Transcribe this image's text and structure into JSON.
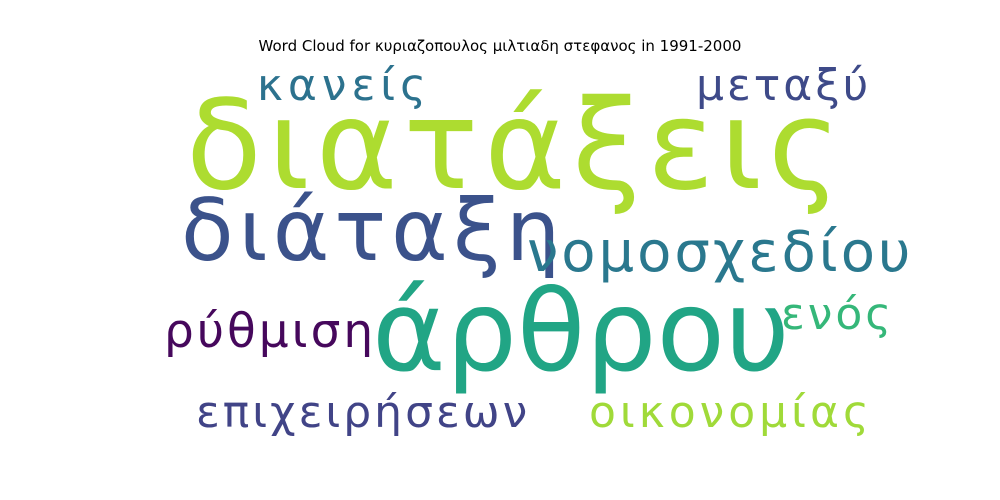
{
  "title": "Word Cloud for κυριαζοπουλος μιλτιαδη στεφανος in 1991-2000",
  "words": [
    {
      "text": "διατάξεις",
      "color": "#addc30"
    },
    {
      "text": "διάταξη",
      "color": "#3b528b"
    },
    {
      "text": "άρθρου",
      "color": "#21a585"
    },
    {
      "text": "νομοσχεδίου",
      "color": "#2a788e"
    },
    {
      "text": "κανείς",
      "color": "#2c728e"
    },
    {
      "text": "μεταξύ",
      "color": "#3e4a89"
    },
    {
      "text": "ρύθμιση",
      "color": "#46085c"
    },
    {
      "text": "ενός",
      "color": "#35b779"
    },
    {
      "text": "επιχειρήσεων",
      "color": "#414487"
    },
    {
      "text": "οικονομίας",
      "color": "#a0da39"
    }
  ]
}
